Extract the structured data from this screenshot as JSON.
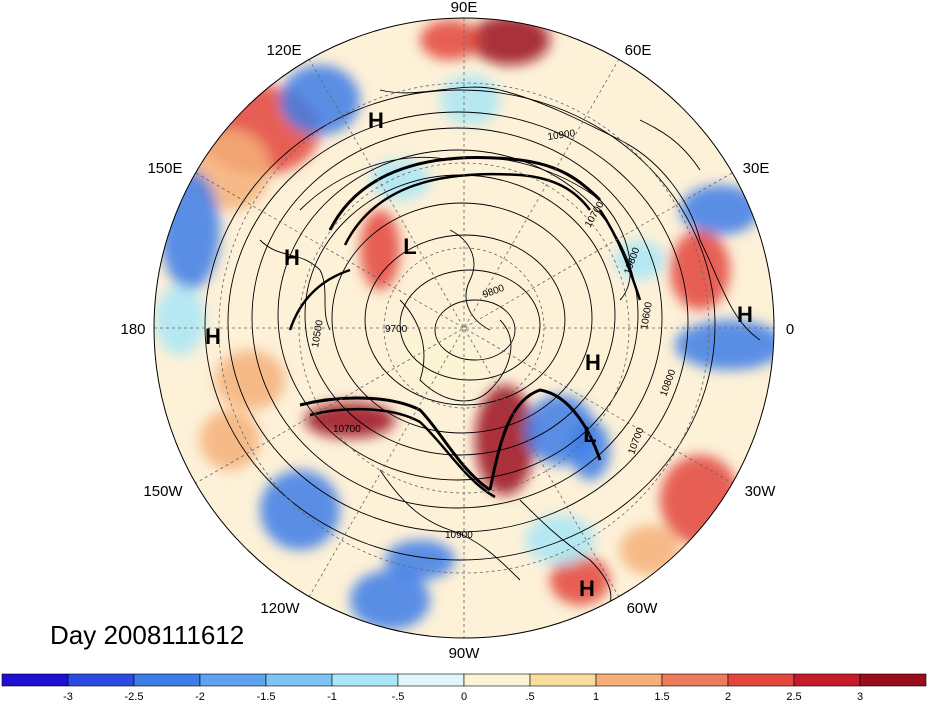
{
  "date_label": "Day 2008111612",
  "lon_labels": [
    "90E",
    "60E",
    "30E",
    "0",
    "30W",
    "60W",
    "90W",
    "120W",
    "150W",
    "180",
    "150E",
    "120E"
  ],
  "pressure_labels": [
    {
      "type": "H"
    },
    {
      "type": "H"
    },
    {
      "type": "H"
    },
    {
      "type": "H"
    },
    {
      "type": "H"
    },
    {
      "type": "H"
    },
    {
      "type": "L"
    },
    {
      "type": "L"
    }
  ],
  "contour_labels": [
    "10900",
    "10800",
    "10700",
    "10600",
    "10500",
    "9700",
    "9800",
    "10700",
    "10800",
    "10900",
    "10700"
  ],
  "colorbar": {
    "ticks": [
      "-3",
      "-2.5",
      "-2",
      "-1.5",
      "-1",
      "-.5",
      "0",
      ".5",
      "1",
      "1.5",
      "2",
      "2.5",
      "3"
    ],
    "colors": [
      "#1f0fd0",
      "#2b4be0",
      "#3c7de8",
      "#5fa3ef",
      "#7fc5f4",
      "#a9e6f7",
      "#dff6fb",
      "#fbf4d2",
      "#f8dc9c",
      "#f5b079",
      "#ef7b5d",
      "#e3463d",
      "#c51a2a",
      "#9b0c1d"
    ]
  },
  "field_colors": {
    "blue": "#3c7de8",
    "light_blue": "#a9e6f7",
    "red": "#e3463d",
    "dark_red": "#9b0c1d",
    "orange": "#f5b079",
    "cream": "#fbf4d2"
  }
}
